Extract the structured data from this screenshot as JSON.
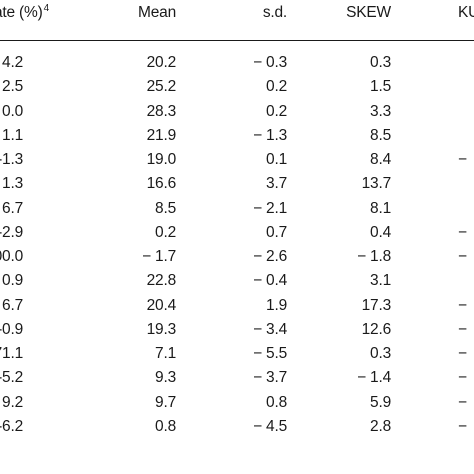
{
  "table": {
    "headers": {
      "rate": "ate (%)",
      "rate_sup": "4",
      "mean": "Mean",
      "sd": "s.d.",
      "skew": "SKEW",
      "ku": "KU"
    },
    "rows": [
      {
        "rate": "4.2",
        "mean": "20.2",
        "sd": "− 0.3",
        "skew": "0.3",
        "ku": ""
      },
      {
        "rate": "2.5",
        "mean": "25.2",
        "sd": "0.2",
        "skew": "1.5",
        "ku": ""
      },
      {
        "rate": "0.0",
        "mean": "28.3",
        "sd": "0.2",
        "skew": "3.3",
        "ku": ""
      },
      {
        "rate": "1.1",
        "mean": "21.9",
        "sd": "− 1.3",
        "skew": "8.5",
        "ku": ""
      },
      {
        "rate": "-1.3",
        "mean": "19.0",
        "sd": "0.1",
        "skew": "8.4",
        "ku": "−"
      },
      {
        "rate": "1.3",
        "mean": "16.6",
        "sd": "3.7",
        "skew": "13.7",
        "ku": ""
      },
      {
        "rate": "6.7",
        "mean": "8.5",
        "sd": "− 2.1",
        "skew": "8.1",
        "ku": ""
      },
      {
        "rate": "-2.9",
        "mean": "0.2",
        "sd": "0.7",
        "skew": "0.4",
        "ku": "−"
      },
      {
        "rate": "00.0",
        "mean": "− 1.7",
        "sd": "− 2.6",
        "skew": "− 1.8",
        "ku": "−"
      },
      {
        "rate": "0.9",
        "mean": "22.8",
        "sd": "− 0.4",
        "skew": "3.1",
        "ku": ""
      },
      {
        "rate": "6.7",
        "mean": "20.4",
        "sd": "1.9",
        "skew": "17.3",
        "ku": "−"
      },
      {
        "rate": "-0.9",
        "mean": "19.3",
        "sd": "− 3.4",
        "skew": "12.6",
        "ku": "−"
      },
      {
        "rate": "71.1",
        "mean": "7.1",
        "sd": "− 5.5",
        "skew": "0.3",
        "ku": "−"
      },
      {
        "rate": "-5.2",
        "mean": "9.3",
        "sd": "− 3.7",
        "skew": "− 1.4",
        "ku": "−"
      },
      {
        "rate": "9.2",
        "mean": "9.7",
        "sd": "0.8",
        "skew": "5.9",
        "ku": "−"
      },
      {
        "rate": "-6.2",
        "mean": "0.8",
        "sd": "− 4.5",
        "skew": "2.8",
        "ku": "−"
      }
    ]
  }
}
